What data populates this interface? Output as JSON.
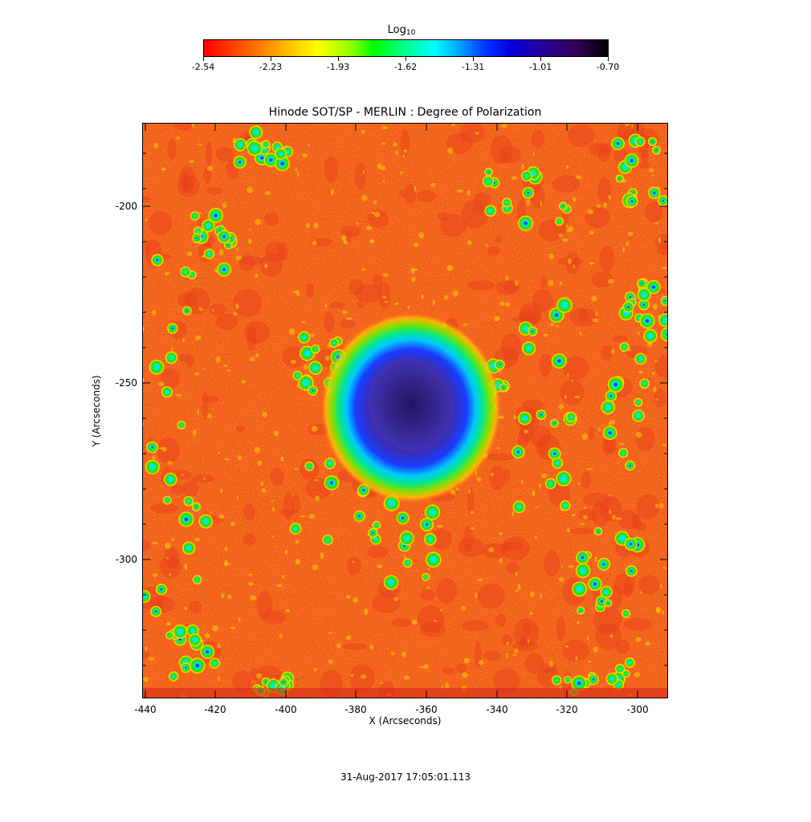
{
  "colorbar": {
    "title": "Log",
    "title_subscript": "10",
    "tick_labels": [
      "-2.54",
      "-2.23",
      "-1.93",
      "-1.62",
      "-1.31",
      "-1.01",
      "-0.70"
    ],
    "range": [
      -2.54,
      -0.7
    ]
  },
  "plot": {
    "title": "Hinode SOT/SP - MERLIN : Degree of Polarization",
    "xlabel": "X (Arcseconds)",
    "ylabel": "Y (Arcseconds)",
    "x_tick_labels": [
      "-440",
      "-420",
      "-400",
      "-380",
      "-360",
      "-340",
      "-320",
      "-300"
    ],
    "y_tick_labels": [
      "-200",
      "-250",
      "-300"
    ],
    "xlim": [
      -441,
      -291
    ],
    "ylim": [
      -339,
      -176
    ],
    "colors": {
      "background": "#f25a18",
      "background_alt": "#e8401a",
      "speckle": "#ff8a1c",
      "yellow": "#ffd000",
      "green": "#33e000",
      "cyan": "#00e8d8",
      "blue": "#1a3cff",
      "umbra": "#3a1f9e"
    }
  },
  "timestamp": "31-Aug-2017 17:05:01.113"
}
